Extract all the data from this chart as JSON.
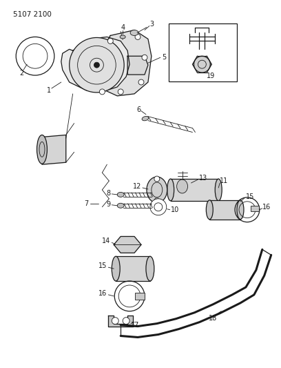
{
  "bg": "#ffffff",
  "lc": "#1a1a1a",
  "figsize": [
    4.08,
    5.33
  ],
  "dpi": 100,
  "title": "5107 2100",
  "lw_thin": 0.6,
  "lw_med": 0.9,
  "lw_thick": 1.4,
  "lw_hose": 2.2,
  "fs": 7.0
}
